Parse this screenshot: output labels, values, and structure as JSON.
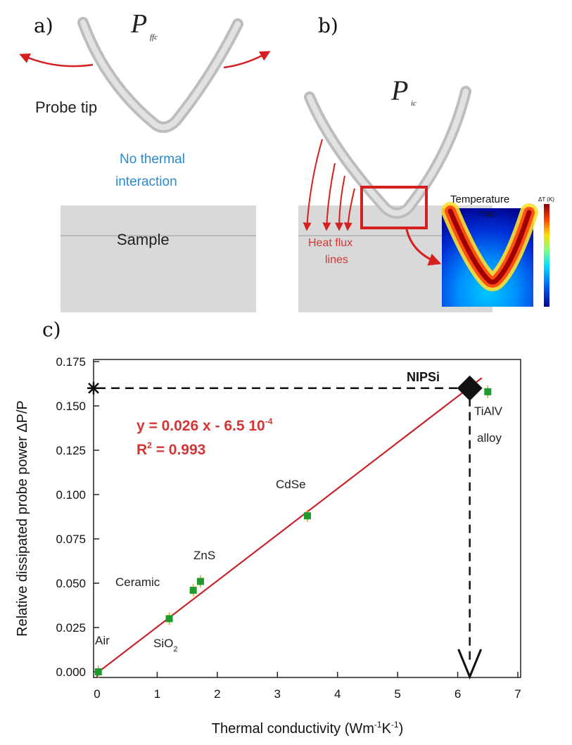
{
  "panel_a": {
    "label": "a)",
    "power_symbol": "P",
    "power_subscript": "ffc",
    "probe_label": "Probe tip",
    "no_interaction_line1": "No thermal",
    "no_interaction_line2": "interaction",
    "sample_label": "Sample"
  },
  "panel_b": {
    "label": "b)",
    "power_symbol": "P",
    "power_subscript": "ic",
    "heat_flux_line1": "Heat flux",
    "heat_flux_line2": "lines",
    "temperature_title": "Temperature",
    "temperature_subtitle": "map",
    "colorbar_label": "ΔT (K)"
  },
  "panel_c": {
    "label": "c)",
    "fit_equation": "y = 0.026 x - 6.5 10",
    "fit_equation_exp": "-4",
    "r2_label": "R",
    "r2_exp": "2",
    "r2_value": " = 0.993",
    "highlight_label": "NIPSi"
  },
  "colors": {
    "arrow_red": "#d42020",
    "fit_line": "#c8242a",
    "point_green": "#1f9a2c",
    "annotation_text": "#d43535",
    "probe_gray": "#c8c8c8",
    "sample_gray": "#d6d6d6",
    "blue_text": "#2a8ad0"
  },
  "chart_data": {
    "type": "scatter",
    "xlabel": "Thermal conductivity (Wm",
    "xlabel_sup1": "-1",
    "xlabel_mid": "K",
    "xlabel_sup2": "-1",
    "xlabel_end": ")",
    "ylabel": "Relative dissipated probe power ΔP/P",
    "xlim": [
      0,
      7
    ],
    "ylim": [
      0,
      0.175
    ],
    "xticks": [
      0,
      1,
      2,
      3,
      4,
      5,
      6,
      7
    ],
    "yticks": [
      0.0,
      0.025,
      0.05,
      0.075,
      0.1,
      0.125,
      0.15,
      0.175
    ],
    "ytick_labels": [
      "0.000",
      "0.025",
      "0.050",
      "0.075",
      "0.100",
      "0.125",
      "0.150",
      "0.175"
    ],
    "grid": false,
    "points": [
      {
        "label": "Air",
        "x": 0.02,
        "y": 0.0
      },
      {
        "label": "SiO",
        "sub": "2",
        "x": 1.2,
        "y": 0.03
      },
      {
        "label": "Ceramic",
        "x": 1.6,
        "y": 0.046
      },
      {
        "label": "ZnS",
        "x": 1.72,
        "y": 0.051
      },
      {
        "label": "CdSe",
        "x": 3.5,
        "y": 0.088
      },
      {
        "label": "TiAlV",
        "label2": "alloy",
        "x": 6.5,
        "y": 0.158
      }
    ],
    "fit": {
      "slope": 0.026,
      "intercept": -0.00065,
      "x_range": [
        0,
        6.4
      ]
    },
    "highlight": {
      "label": "NIPSi",
      "x": 6.2,
      "y": 0.16
    }
  }
}
